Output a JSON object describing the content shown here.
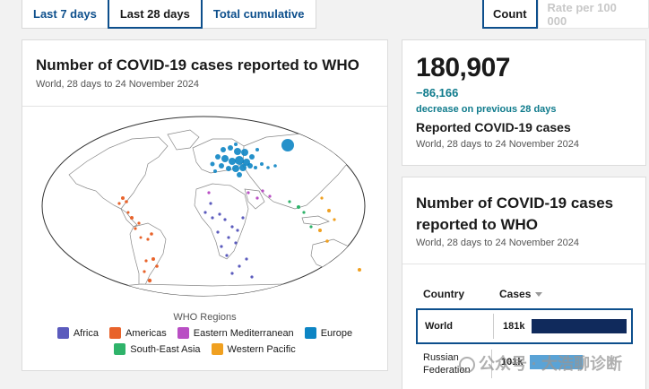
{
  "tabs": [
    "Last 7 days",
    "Last 28 days",
    "Total cumulative"
  ],
  "active_tab_index": 1,
  "metric_toggle": {
    "count": "Count",
    "rate": "Rate per 100 000",
    "active": "count"
  },
  "map_card": {
    "title": "Number of COVID-19 cases reported to WHO",
    "subtitle": "World, 28 days to 24 November 2024",
    "legend_title": "WHO Regions",
    "regions": [
      {
        "name": "Africa",
        "color": "#5b5bbd"
      },
      {
        "name": "Americas",
        "color": "#e8632b"
      },
      {
        "name": "Eastern Mediterranean",
        "color": "#b94fc4"
      },
      {
        "name": "Europe",
        "color": "#0d85c4"
      },
      {
        "name": "South-East Asia",
        "color": "#2fb36a"
      },
      {
        "name": "Western Pacific",
        "color": "#f0a020"
      }
    ]
  },
  "stat_card": {
    "value": "180,907",
    "change": "−86,166",
    "change_label": "decrease on previous 28 days",
    "label": "Reported COVID-19 cases",
    "subtitle": "World, 28 days to 24 November 2024"
  },
  "table_card": {
    "title": "Number of COVID-19 cases reported to WHO",
    "subtitle": "World, 28 days to 24 November 2024",
    "columns": {
      "country": "Country",
      "cases": "Cases"
    },
    "rows": [
      {
        "country": "World",
        "value": "181k",
        "fraction": 1.0
      },
      {
        "country": "Russian Federation",
        "value": "101k",
        "fraction": 0.56
      }
    ]
  },
  "watermark": "公众号 · 大浩聊诊断"
}
